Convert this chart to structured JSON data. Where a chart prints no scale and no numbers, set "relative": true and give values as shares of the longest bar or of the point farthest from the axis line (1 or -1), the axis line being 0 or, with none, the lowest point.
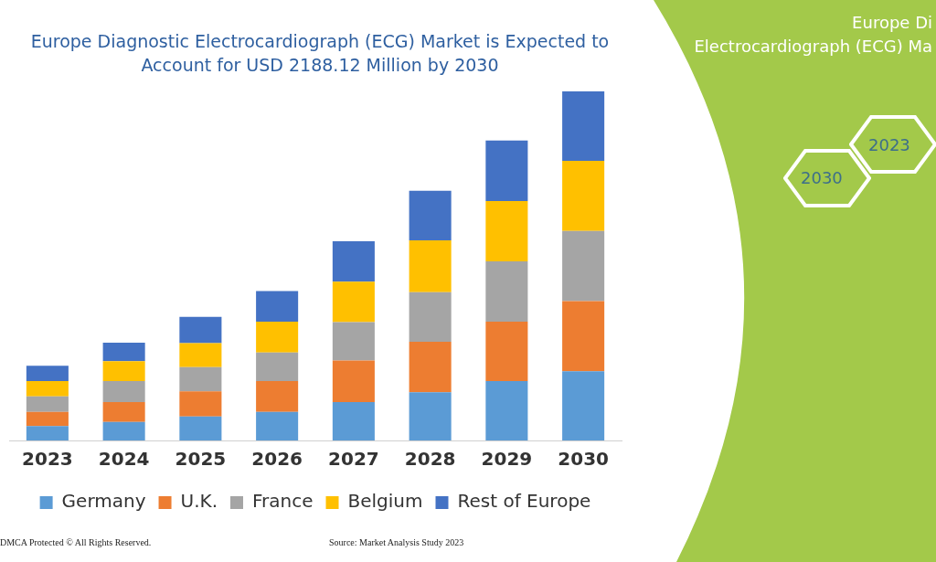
{
  "chart_data": {
    "type": "bar",
    "title": "Europe Diagnostic Electrocardiograph (ECG) Market is Expected to Account for USD 2188.12 Million by 2030",
    "categories": [
      "2023",
      "2024",
      "2025",
      "2026",
      "2027",
      "2028",
      "2029",
      "2030"
    ],
    "stacked": true,
    "relative": true,
    "grid": false,
    "legend": "bottom",
    "series": [
      {
        "name": "Germany",
        "color": "#5b9bd5",
        "values": [
          0.041,
          0.053,
          0.069,
          0.082,
          0.11,
          0.138,
          0.17,
          0.198
        ]
      },
      {
        "name": "U.K.",
        "color": "#ed7d31",
        "values": [
          0.041,
          0.057,
          0.072,
          0.088,
          0.119,
          0.145,
          0.17,
          0.201
        ]
      },
      {
        "name": "France",
        "color": "#a5a5a5",
        "values": [
          0.044,
          0.06,
          0.069,
          0.082,
          0.11,
          0.142,
          0.173,
          0.201
        ]
      },
      {
        "name": "Belgium",
        "color": "#ffc000",
        "values": [
          0.044,
          0.057,
          0.069,
          0.088,
          0.116,
          0.148,
          0.173,
          0.201
        ]
      },
      {
        "name": "Rest of Europe",
        "color": "#4472c4",
        "values": [
          0.044,
          0.053,
          0.075,
          0.088,
          0.116,
          0.142,
          0.173,
          0.199
        ]
      }
    ],
    "annotations": [
      "DMCA Protected © All Rights Reserved.",
      "Source: Market Analysis Study 2023",
      "Europe Di",
      "Electrocardiograph (ECG) Ma",
      "2030",
      "2023"
    ]
  }
}
